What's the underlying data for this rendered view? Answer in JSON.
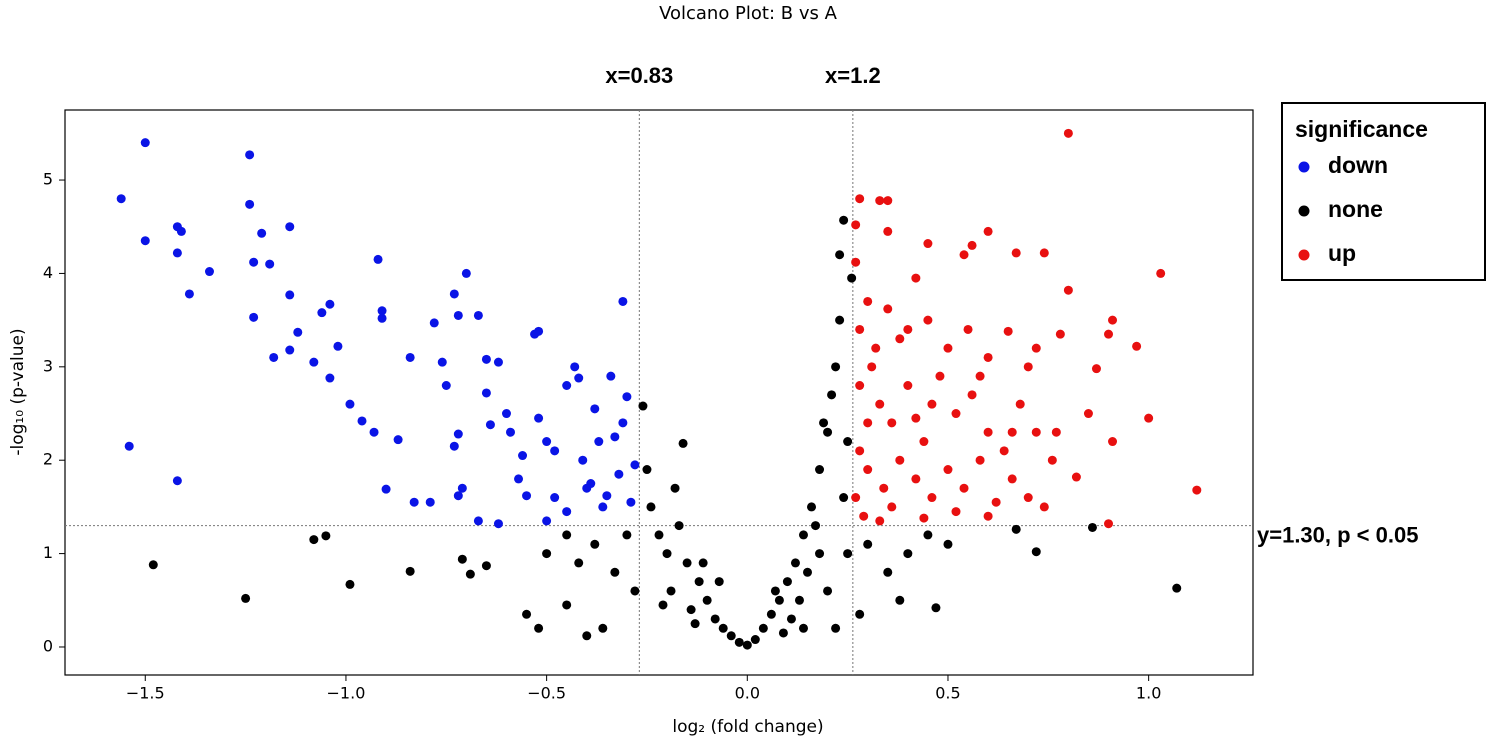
{
  "chart_data": {
    "type": "scatter",
    "title": "Volcano Plot: B vs A",
    "x_label": "log₂ (fold change)",
    "y_label": "-log₁₀ (p-value)",
    "xlim": [
      -1.7,
      1.26
    ],
    "ylim": [
      -0.3,
      5.75
    ],
    "xticks": [
      {
        "value": -1.5,
        "label": "−1.5"
      },
      {
        "value": -1.0,
        "label": "−1.0"
      },
      {
        "value": -0.5,
        "label": "−0.5"
      },
      {
        "value": 0.0,
        "label": "0.0"
      },
      {
        "value": 0.5,
        "label": "0.5"
      },
      {
        "value": 1.0,
        "label": "1.0"
      }
    ],
    "yticks": [
      0,
      1,
      2,
      3,
      4,
      5
    ],
    "reference_lines": {
      "vertical": [
        {
          "value": -0.269,
          "label": "x=0.83"
        },
        {
          "value": 0.263,
          "label": "x=1.2"
        }
      ],
      "horizontal": [
        {
          "value": 1.3,
          "label": "y=1.30,  p < 0.05"
        }
      ]
    },
    "legend_title": "significance",
    "legend_position": "outside-right",
    "series": [
      {
        "name": "down",
        "color": "#0a14e6",
        "x": [
          -1.56,
          -1.5,
          -1.5,
          -1.54,
          -1.42,
          -1.42,
          -1.41,
          -1.39,
          -1.34,
          -1.42,
          -1.24,
          -1.24,
          -1.23,
          -1.21,
          -1.19,
          -1.23,
          -1.14,
          -1.14,
          -1.18,
          -1.12,
          -1.14,
          -1.08,
          -1.06,
          -1.04,
          -1.04,
          -1.02,
          -0.99,
          -0.92,
          -0.91,
          -0.91,
          -0.96,
          -0.93,
          -0.87,
          -0.9,
          -0.84,
          -0.83,
          -0.79,
          -0.78,
          -0.76,
          -0.75,
          -0.73,
          -0.72,
          -0.72,
          -0.73,
          -0.7,
          -0.71,
          -0.72,
          -0.67,
          -0.65,
          -0.62,
          -0.65,
          -0.64,
          -0.67,
          -0.62,
          -0.6,
          -0.59,
          -0.56,
          -0.57,
          -0.55,
          -0.52,
          -0.53,
          -0.52,
          -0.5,
          -0.48,
          -0.45,
          -0.43,
          -0.42,
          -0.41,
          -0.39,
          -0.38,
          -0.37,
          -0.36,
          -0.34,
          -0.33,
          -0.32,
          -0.31,
          -0.31,
          -0.3,
          -0.29,
          -0.28,
          -0.45,
          -0.48,
          -0.5,
          -0.4,
          -0.35
        ],
        "y": [
          4.8,
          5.4,
          4.35,
          2.15,
          4.5,
          4.22,
          4.45,
          3.78,
          4.02,
          1.78,
          5.27,
          4.74,
          4.12,
          4.43,
          4.1,
          3.53,
          4.5,
          3.77,
          3.1,
          3.37,
          3.18,
          3.05,
          3.58,
          3.67,
          2.88,
          3.22,
          2.6,
          4.15,
          3.6,
          3.52,
          2.42,
          2.3,
          2.22,
          1.69,
          3.1,
          1.55,
          1.55,
          3.47,
          3.05,
          2.8,
          3.78,
          3.55,
          2.28,
          2.15,
          4.0,
          1.7,
          1.62,
          3.55,
          3.08,
          3.05,
          2.72,
          2.38,
          1.35,
          1.32,
          2.5,
          2.3,
          2.05,
          1.8,
          1.62,
          3.38,
          3.35,
          2.45,
          2.2,
          2.1,
          2.8,
          3.0,
          2.88,
          2.0,
          1.75,
          2.55,
          2.2,
          1.5,
          2.9,
          2.25,
          1.85,
          3.7,
          2.4,
          2.68,
          1.55,
          1.95,
          1.45,
          1.6,
          1.35,
          1.7,
          1.62
        ]
      },
      {
        "name": "none",
        "color": "#000000",
        "x": [
          -1.48,
          -1.25,
          -1.08,
          -1.05,
          -0.99,
          -0.84,
          -0.71,
          -0.69,
          -0.65,
          -0.55,
          -0.52,
          -0.45,
          -0.4,
          -0.36,
          -0.5,
          -0.45,
          -0.42,
          -0.38,
          -0.33,
          -0.3,
          -0.28,
          -0.26,
          -0.25,
          -0.24,
          -0.22,
          -0.2,
          -0.19,
          -0.18,
          -0.16,
          -0.15,
          -0.14,
          -0.12,
          -0.1,
          -0.08,
          -0.06,
          -0.04,
          -0.02,
          0.0,
          0.02,
          0.04,
          0.06,
          0.08,
          0.1,
          0.12,
          0.14,
          0.16,
          0.18,
          0.2,
          0.22,
          0.23,
          0.24,
          0.23,
          0.21,
          0.19,
          0.17,
          0.15,
          0.13,
          0.11,
          0.09,
          0.2,
          0.25,
          0.3,
          0.35,
          0.4,
          0.45,
          0.5,
          0.38,
          0.47,
          0.67,
          0.72,
          0.86,
          1.07,
          0.28,
          0.22,
          0.18,
          0.25,
          0.24,
          0.14,
          0.07,
          -0.07,
          -0.11,
          -0.17,
          -0.13,
          -0.21,
          0.26
        ],
        "y": [
          0.88,
          0.52,
          1.15,
          1.19,
          0.67,
          0.81,
          0.94,
          0.78,
          0.87,
          0.35,
          0.2,
          0.45,
          0.12,
          0.2,
          1.0,
          1.2,
          0.9,
          1.1,
          0.8,
          1.2,
          0.6,
          2.58,
          1.9,
          1.5,
          1.2,
          1.0,
          0.6,
          1.7,
          2.18,
          0.9,
          0.4,
          0.7,
          0.5,
          0.3,
          0.2,
          0.12,
          0.05,
          0.02,
          0.08,
          0.2,
          0.35,
          0.5,
          0.7,
          0.9,
          1.2,
          1.5,
          1.9,
          2.3,
          3.0,
          3.5,
          4.57,
          4.2,
          2.7,
          2.4,
          1.3,
          0.8,
          0.5,
          0.3,
          0.15,
          0.6,
          1.0,
          1.1,
          0.8,
          1.0,
          1.2,
          1.1,
          0.5,
          0.42,
          1.26,
          1.02,
          1.28,
          0.63,
          0.35,
          0.2,
          1.0,
          2.2,
          1.6,
          0.2,
          0.6,
          0.7,
          0.9,
          1.3,
          0.25,
          0.45,
          3.95
        ]
      },
      {
        "name": "up",
        "color": "#e81010",
        "x": [
          0.8,
          0.28,
          0.33,
          0.35,
          0.27,
          0.27,
          0.35,
          0.45,
          0.54,
          0.56,
          0.6,
          0.67,
          0.74,
          0.8,
          0.78,
          1.03,
          0.9,
          0.91,
          0.97,
          1.0,
          0.91,
          0.85,
          0.87,
          1.12,
          0.9,
          0.82,
          0.3,
          0.32,
          0.35,
          0.38,
          0.42,
          0.45,
          0.5,
          0.55,
          0.6,
          0.65,
          0.7,
          0.72,
          0.33,
          0.36,
          0.4,
          0.44,
          0.48,
          0.52,
          0.56,
          0.6,
          0.64,
          0.68,
          0.72,
          0.76,
          0.28,
          0.3,
          0.34,
          0.38,
          0.42,
          0.46,
          0.5,
          0.54,
          0.58,
          0.62,
          0.66,
          0.7,
          0.74,
          0.29,
          0.33,
          0.44,
          0.52,
          0.6,
          0.28,
          0.3,
          0.31,
          0.4,
          0.46,
          0.58,
          0.66,
          0.77,
          0.36,
          0.27,
          0.28,
          0.42
        ],
        "y": [
          5.5,
          4.8,
          4.78,
          4.78,
          4.52,
          4.12,
          4.45,
          4.32,
          4.2,
          4.3,
          4.45,
          4.22,
          4.22,
          3.82,
          3.35,
          4.0,
          3.35,
          3.5,
          3.22,
          2.45,
          2.2,
          2.5,
          2.98,
          1.68,
          1.32,
          1.82,
          3.7,
          3.2,
          3.62,
          3.3,
          3.95,
          3.5,
          3.2,
          3.4,
          3.1,
          3.38,
          3.0,
          3.2,
          2.6,
          2.4,
          2.8,
          2.2,
          2.9,
          2.5,
          2.7,
          2.3,
          2.1,
          2.6,
          2.3,
          2.0,
          2.1,
          1.9,
          1.7,
          2.0,
          1.8,
          1.6,
          1.9,
          1.7,
          2.0,
          1.55,
          1.8,
          1.6,
          1.5,
          1.4,
          1.35,
          1.38,
          1.45,
          1.4,
          2.8,
          2.4,
          3.0,
          3.4,
          2.6,
          2.9,
          2.3,
          2.3,
          1.5,
          1.6,
          3.4,
          2.45
        ]
      }
    ]
  }
}
